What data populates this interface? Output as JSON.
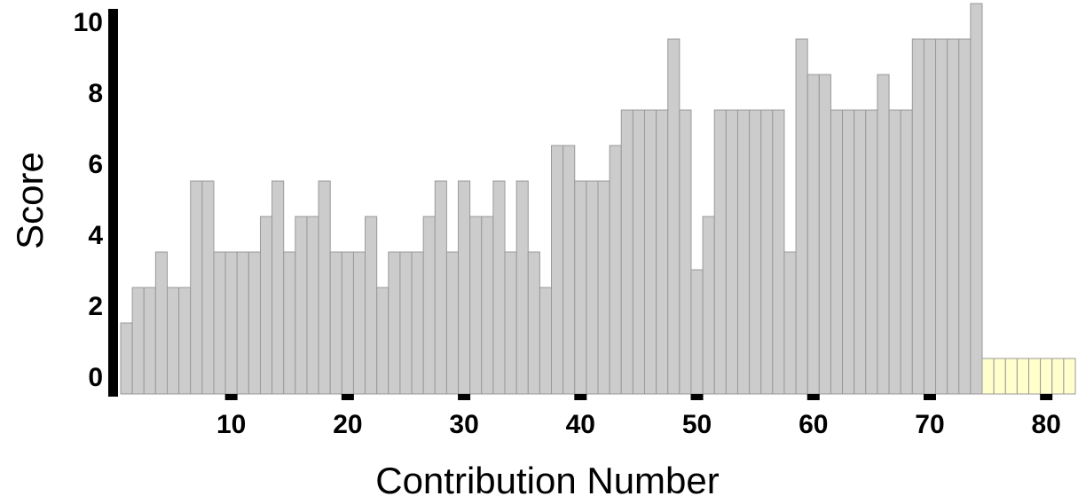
{
  "chart_data": {
    "type": "bar",
    "xlabel": "Contribution Number",
    "ylabel": "Score",
    "xlim": [
      0.5,
      82.5
    ],
    "ylim": [
      -0.5,
      10.5
    ],
    "xticks": [
      10,
      20,
      30,
      40,
      50,
      60,
      70,
      80
    ],
    "yticks": [
      0,
      2,
      4,
      6,
      8,
      10
    ],
    "grid": false,
    "legend": "none",
    "x": [
      1,
      2,
      3,
      4,
      5,
      6,
      7,
      8,
      9,
      10,
      11,
      12,
      13,
      14,
      15,
      16,
      17,
      18,
      19,
      20,
      21,
      22,
      23,
      24,
      25,
      26,
      27,
      28,
      29,
      30,
      31,
      32,
      33,
      34,
      35,
      36,
      37,
      38,
      39,
      40,
      41,
      42,
      43,
      44,
      45,
      46,
      47,
      48,
      49,
      50,
      51,
      52,
      53,
      54,
      55,
      56,
      57,
      58,
      59,
      60,
      61,
      62,
      63,
      64,
      65,
      66,
      67,
      68,
      69,
      70,
      71,
      72,
      73,
      74,
      75,
      76,
      77,
      78,
      79,
      80,
      81,
      82
    ],
    "values": [
      1.5,
      2.5,
      2.5,
      3.5,
      2.5,
      2.5,
      5.5,
      5.5,
      3.5,
      3.5,
      3.5,
      3.5,
      4.5,
      5.5,
      3.5,
      4.5,
      4.5,
      5.5,
      3.5,
      3.5,
      3.5,
      4.5,
      2.5,
      3.5,
      3.5,
      3.5,
      4.5,
      5.5,
      3.5,
      5.5,
      4.5,
      4.5,
      5.5,
      3.5,
      5.5,
      3.5,
      2.5,
      6.5,
      6.5,
      5.5,
      5.5,
      5.5,
      6.5,
      7.5,
      7.5,
      7.5,
      7.5,
      9.5,
      7.5,
      3.0,
      4.5,
      7.5,
      7.5,
      7.5,
      7.5,
      7.5,
      7.5,
      3.5,
      9.5,
      8.5,
      8.5,
      7.5,
      7.5,
      7.5,
      7.5,
      8.5,
      7.5,
      7.5,
      9.5,
      9.5,
      9.5,
      9.5,
      9.5,
      10.5,
      0.5,
      0.5,
      0.5,
      0.5,
      0.5,
      0.5,
      0.5,
      0.5
    ],
    "colors": {
      "main": "#cccccc",
      "pending": "#ffffcc",
      "edge": "#999999",
      "axis": "#000000"
    },
    "pending_from_index": 74
  }
}
